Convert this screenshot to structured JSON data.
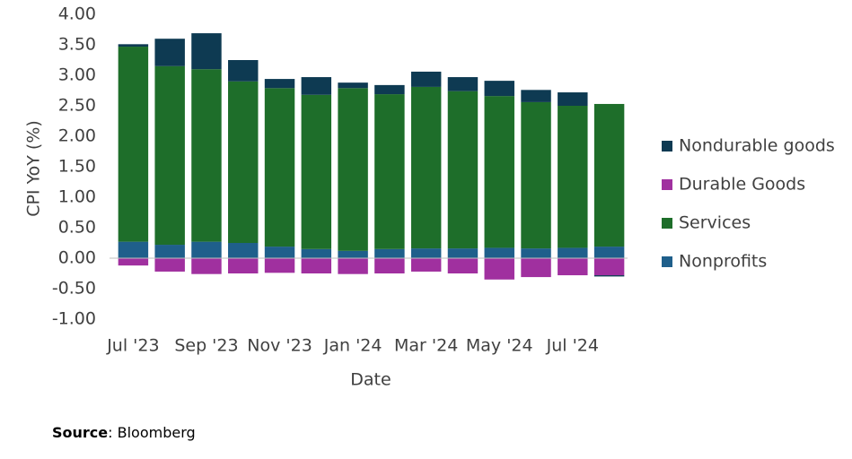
{
  "chart_data": {
    "type": "stacked_bar",
    "x_label": "Date",
    "y_label": "CPI YoY (%)",
    "source_label": "Source",
    "source_text": ": Bloomberg",
    "categories": [
      "Jul '23",
      null,
      "Sep '23",
      null,
      "Nov '23",
      null,
      "Jan '24",
      null,
      "Mar '24",
      null,
      "May '24",
      null,
      "Jul '24",
      null
    ],
    "series": [
      {
        "name": "Nonprofits",
        "color": "#1f5f8b",
        "values": [
          0.27,
          0.22,
          0.27,
          0.25,
          0.19,
          0.15,
          0.12,
          0.15,
          0.16,
          0.16,
          0.17,
          0.16,
          0.17,
          0.19
        ]
      },
      {
        "name": "Services",
        "color": "#1e6e2a",
        "values": [
          3.2,
          2.93,
          2.83,
          2.65,
          2.6,
          2.53,
          2.67,
          2.54,
          2.65,
          2.58,
          2.49,
          2.4,
          2.33,
          2.34
        ]
      },
      {
        "name": "Durable Goods",
        "color": "#a0309f",
        "values": [
          -0.12,
          -0.22,
          -0.26,
          -0.25,
          -0.24,
          -0.25,
          -0.26,
          -0.25,
          -0.22,
          -0.25,
          -0.35,
          -0.31,
          -0.28,
          -0.28
        ]
      },
      {
        "name": "Nondurable goods",
        "color": "#0e3a52",
        "values": [
          0.04,
          0.45,
          0.59,
          0.35,
          0.15,
          0.29,
          0.09,
          0.15,
          0.25,
          0.23,
          0.25,
          0.2,
          0.22,
          -0.02
        ]
      }
    ],
    "ylim": [
      -1,
      4
    ],
    "yticks": [
      {
        "value": -1,
        "label": "-1.00"
      },
      {
        "value": -0.5,
        "label": "-0.50"
      },
      {
        "value": 0,
        "label": "0.00"
      },
      {
        "value": 0.5,
        "label": "0.50"
      },
      {
        "value": 1,
        "label": "1.00"
      },
      {
        "value": 1.5,
        "label": "1.50"
      },
      {
        "value": 2,
        "label": "2.00"
      },
      {
        "value": 2.5,
        "label": "2.50"
      },
      {
        "value": 3,
        "label": "3.00"
      },
      {
        "value": 3.5,
        "label": "3.50"
      },
      {
        "value": 4,
        "label": "4.00"
      }
    ],
    "grid": false
  }
}
